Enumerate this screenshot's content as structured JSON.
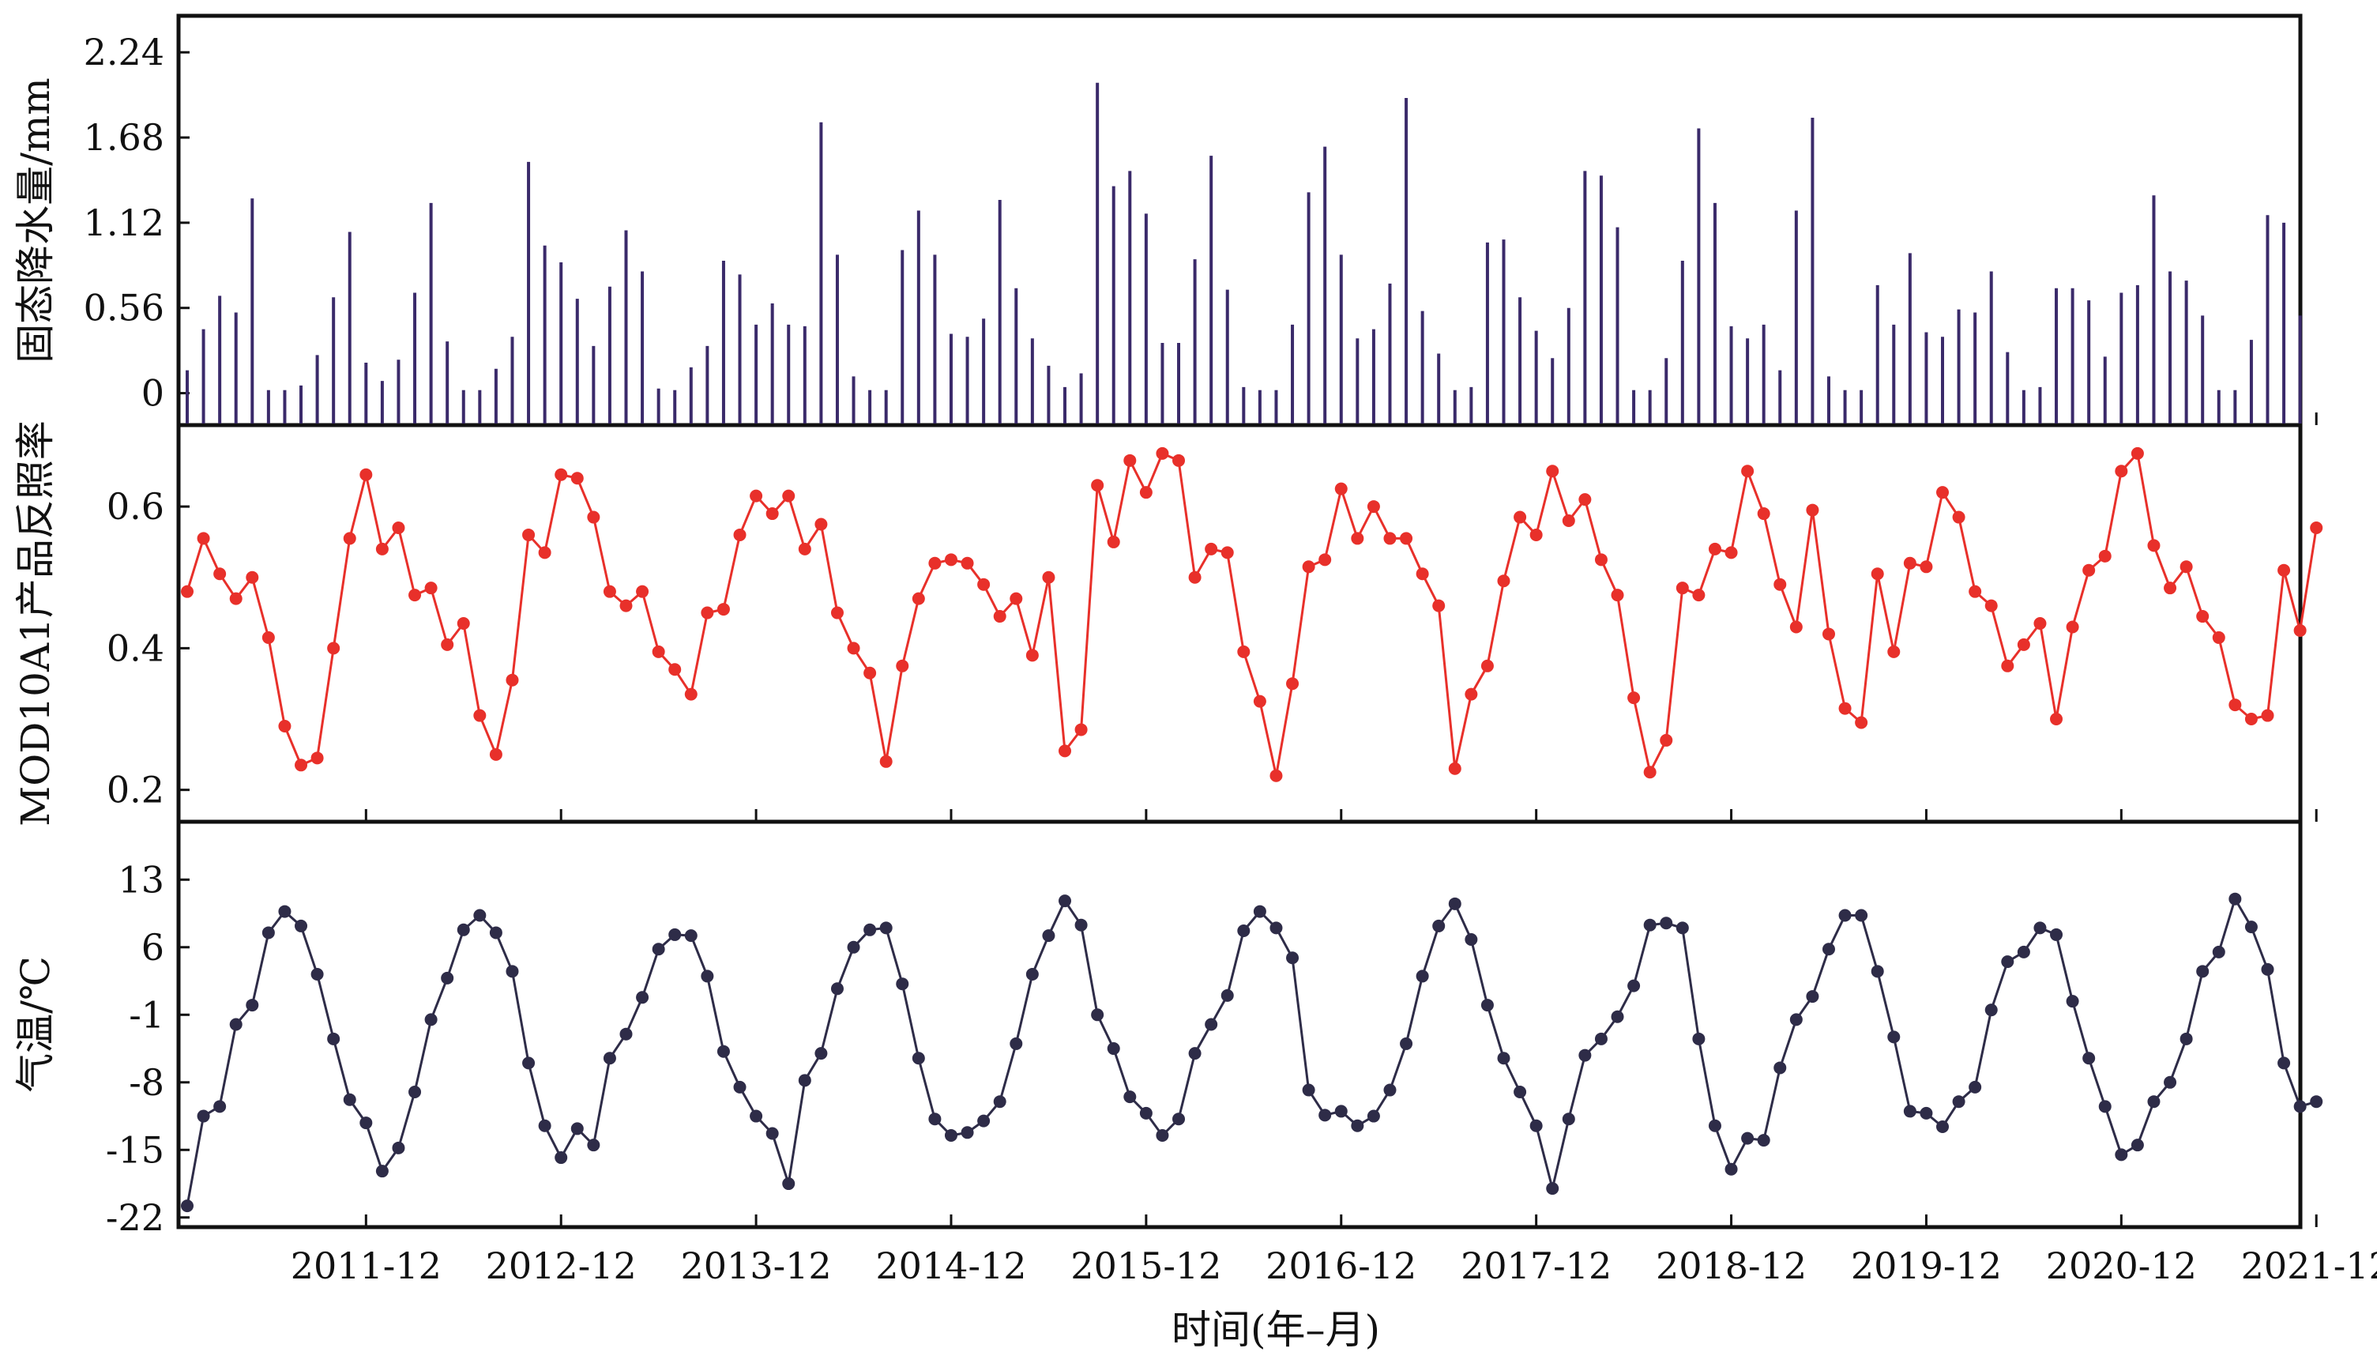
{
  "colors": {
    "precip": "#3a2a6a",
    "albedo": "#e8302a",
    "temp": "#2e2c48",
    "axis": "#111111"
  },
  "xaxis": {
    "label": "时间(年–月)",
    "ticks": [
      "2011-12",
      "2012-12",
      "2013-12",
      "2014-12",
      "2015-12",
      "2016-12",
      "2017-12",
      "2018-12",
      "2019-12",
      "2020-12",
      "2021-12"
    ]
  },
  "chart_data": [
    {
      "type": "bar",
      "ylabel": "固态降水量/mm",
      "ylim": [
        -0.21,
        2.48
      ],
      "yticks": [
        "0",
        "0.56",
        "1.12",
        "1.68",
        "2.24"
      ],
      "ytick_values": [
        0,
        0.56,
        1.12,
        1.68,
        2.24
      ],
      "x_start": "2011-01",
      "values": [
        0.15,
        0.42,
        0.64,
        0.53,
        1.28,
        0.02,
        0.02,
        0.05,
        0.25,
        0.63,
        1.06,
        0.2,
        0.08,
        0.22,
        0.66,
        1.25,
        0.34,
        0.02,
        0.02,
        0.16,
        0.37,
        1.52,
        0.97,
        0.86,
        0.62,
        0.31,
        0.7,
        1.07,
        0.8,
        0.03,
        0.02,
        0.17,
        0.31,
        0.87,
        0.78,
        0.45,
        0.59,
        0.45,
        0.44,
        1.78,
        0.91,
        0.11,
        0.02,
        0.02,
        0.94,
        1.2,
        0.91,
        0.39,
        0.37,
        0.49,
        1.27,
        0.69,
        0.36,
        0.18,
        0.04,
        0.13,
        2.04,
        1.36,
        1.46,
        1.18,
        0.33,
        0.33,
        0.88,
        1.56,
        0.68,
        0.04,
        0.02,
        0.02,
        0.45,
        1.32,
        1.62,
        0.91,
        0.36,
        0.42,
        0.72,
        1.94,
        0.54,
        0.26,
        0.02,
        0.04,
        0.99,
        1.01,
        0.63,
        0.41,
        0.23,
        0.56,
        1.46,
        1.43,
        1.09,
        0.02,
        0.02,
        0.23,
        0.87,
        1.74,
        1.25,
        0.44,
        0.36,
        0.45,
        0.15,
        1.2,
        1.81,
        0.11,
        0.02,
        0.02,
        0.71,
        0.45,
        0.92,
        0.4,
        0.37,
        0.55,
        0.53,
        0.8,
        0.27,
        0.02,
        0.04,
        0.69,
        0.69,
        0.61,
        0.24,
        0.66,
        0.71,
        1.3,
        0.8,
        0.74,
        0.51,
        0.02,
        0.02,
        0.35,
        1.17,
        1.12,
        0.51
      ]
    },
    {
      "type": "line",
      "ylabel": "MOD10A1产品反照率",
      "ylim": [
        0.155,
        0.715
      ],
      "yticks": [
        "0.2",
        "0.4",
        "0.6"
      ],
      "ytick_values": [
        0.2,
        0.4,
        0.6
      ],
      "x_start": "2011-01",
      "values": [
        0.48,
        0.555,
        0.505,
        0.47,
        0.5,
        0.415,
        0.29,
        0.235,
        0.245,
        0.4,
        0.555,
        0.645,
        0.54,
        0.57,
        0.475,
        0.485,
        0.405,
        0.435,
        0.305,
        0.25,
        0.355,
        0.56,
        0.535,
        0.645,
        0.64,
        0.585,
        0.48,
        0.46,
        0.48,
        0.395,
        0.37,
        0.335,
        0.45,
        0.455,
        0.56,
        0.615,
        0.59,
        0.615,
        0.54,
        0.575,
        0.45,
        0.4,
        0.365,
        0.24,
        0.375,
        0.47,
        0.52,
        0.525,
        0.52,
        0.49,
        0.445,
        0.47,
        0.39,
        0.5,
        0.255,
        0.285,
        0.63,
        0.55,
        0.665,
        0.62,
        0.675,
        0.665,
        0.5,
        0.54,
        0.535,
        0.395,
        0.325,
        0.22,
        0.35,
        0.515,
        0.525,
        0.625,
        0.555,
        0.6,
        0.555,
        0.555,
        0.505,
        0.46,
        0.23,
        0.335,
        0.375,
        0.495,
        0.585,
        0.56,
        0.65,
        0.58,
        0.61,
        0.525,
        0.475,
        0.33,
        0.225,
        0.27,
        0.485,
        0.475,
        0.54,
        0.535,
        0.65,
        0.59,
        0.49,
        0.43,
        0.595,
        0.42,
        0.315,
        0.295,
        0.505,
        0.395,
        0.52,
        0.515,
        0.62,
        0.585,
        0.48,
        0.46,
        0.375,
        0.405,
        0.435,
        0.3,
        0.43,
        0.51,
        0.53,
        0.65,
        0.675,
        0.545,
        0.485,
        0.515,
        0.445,
        0.415,
        0.32,
        0.3,
        0.305,
        0.51,
        0.425,
        0.57
      ]
    },
    {
      "type": "line",
      "ylabel": "气温/℃",
      "ylim": [
        -23,
        19
      ],
      "yticks": [
        "-22",
        "-15",
        "-8",
        "-1",
        "6",
        "13"
      ],
      "ytick_values": [
        -22,
        -15,
        -8,
        -1,
        6,
        13
      ],
      "x_start": "2011-01",
      "values": [
        -20.8,
        -11.5,
        -10.5,
        -2,
        0,
        7.5,
        9.7,
        8.2,
        3.2,
        -3.5,
        -9.8,
        -12.2,
        -17.2,
        -14.8,
        -9,
        -1.5,
        2.8,
        7.8,
        9.3,
        7.5,
        3.5,
        -6,
        -12.5,
        -15.8,
        -12.8,
        -14.5,
        -5.5,
        -3,
        0.8,
        5.8,
        7.3,
        7.2,
        3,
        -4.8,
        -8.5,
        -11.5,
        -13.3,
        -18.5,
        -7.8,
        -5,
        1.7,
        6,
        7.8,
        8,
        2.2,
        -5.5,
        -11.8,
        -13.5,
        -13.2,
        -12,
        -10,
        -4,
        3.2,
        7.2,
        10.8,
        8.3,
        -1,
        -4.5,
        -9.5,
        -11.2,
        -13.5,
        -11.8,
        -5,
        -2,
        1,
        7.7,
        9.7,
        8,
        4.9,
        -8.8,
        -11.4,
        -11,
        -12.5,
        -11.5,
        -8.8,
        -4,
        3,
        8.2,
        10.5,
        6.8,
        0,
        -5.5,
        -9,
        -12.5,
        -19,
        -11.8,
        -5.2,
        -3.5,
        -1.2,
        2,
        8.3,
        8.5,
        8,
        -3.5,
        -12.5,
        -17,
        -13.8,
        -14,
        -6.5,
        -1.5,
        0.9,
        5.8,
        9.3,
        9.3,
        3.5,
        -3.3,
        -11,
        -11.2,
        -12.6,
        -10,
        -8.5,
        -0.5,
        4.5,
        5.5,
        8,
        7.3,
        0.4,
        -5.5,
        -10.5,
        -15.5,
        -14.5,
        -10,
        -8,
        -3.5,
        3.5,
        5.5,
        11,
        8.1,
        3.7,
        -6,
        -10.5,
        -10
      ]
    }
  ]
}
